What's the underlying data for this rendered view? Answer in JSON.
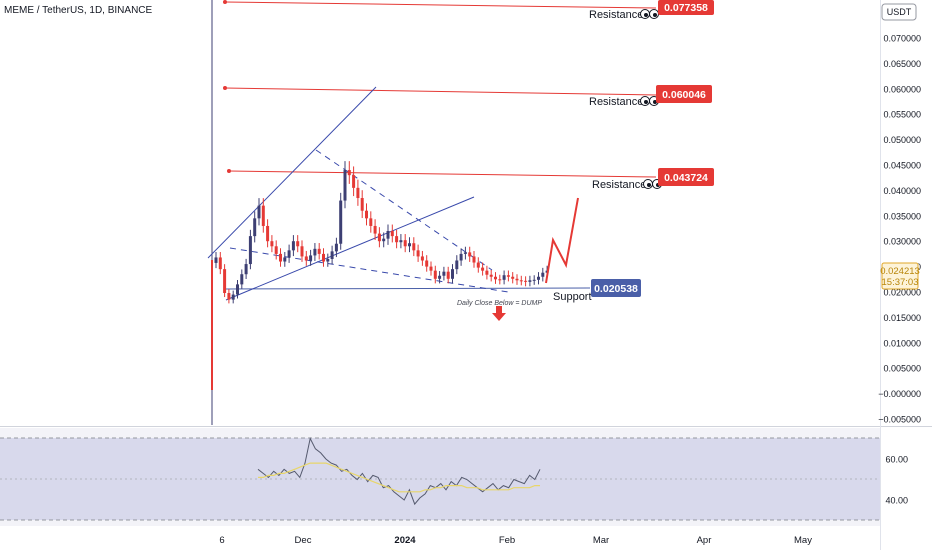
{
  "header": {
    "symbol_title": "MEME / TetherUS, 1D, BINANCE",
    "currency_label": "USDT"
  },
  "annotations": {
    "resistance_label": "Resistance",
    "support_label": "Support",
    "note": "Daily Close Below = DUMP",
    "resistance_levels": [
      "0.077358",
      "0.060046",
      "0.043724"
    ],
    "support_level": "0.020538",
    "current_price": "0.024213",
    "countdown": "15:37:03"
  },
  "colors": {
    "resistance": "#e53935",
    "support": "#4a5fa8",
    "trendline": "#3949ab",
    "candle_up": "#3d3f73",
    "candle_down": "#e53935",
    "projection": "#e53935",
    "rsi_line": "#555a6e",
    "rsi_ma": "#e8d66a",
    "rsi_band": "#d8d9ec"
  },
  "chart_data": [
    {
      "type": "candlestick",
      "yaxis_ticks": [
        "0.070000",
        "0.065000",
        "0.060000",
        "0.055000",
        "0.050000",
        "0.045000",
        "0.040000",
        "0.035000",
        "0.030000",
        "0.025000",
        "0.020000",
        "0.015000",
        "0.010000",
        "0.005000",
        "−0.000000",
        "−0.005000"
      ],
      "xaxis_ticks": [
        "6",
        "Dec",
        "2024",
        "Feb",
        "Mar",
        "Apr",
        "May"
      ],
      "ylim": [
        -0.0055,
        0.0785
      ],
      "close_series": [
        0.0268,
        0.0245,
        0.0198,
        0.0185,
        0.0195,
        0.0215,
        0.0235,
        0.0255,
        0.031,
        0.0345,
        0.037,
        0.033,
        0.03,
        0.029,
        0.0275,
        0.026,
        0.0268,
        0.0282,
        0.03,
        0.029,
        0.027,
        0.0262,
        0.0272,
        0.0285,
        0.0275,
        0.026,
        0.0265,
        0.028,
        0.0295,
        0.038,
        0.044,
        0.043,
        0.0405,
        0.0385,
        0.036,
        0.0345,
        0.033,
        0.0315,
        0.03,
        0.0305,
        0.032,
        0.031,
        0.0298,
        0.0302,
        0.029,
        0.0296,
        0.0282,
        0.027,
        0.0262,
        0.025,
        0.0242,
        0.0226,
        0.0232,
        0.024,
        0.0226,
        0.0245,
        0.0262,
        0.0275,
        0.0278,
        0.027,
        0.0258,
        0.0248,
        0.0242,
        0.0234,
        0.023,
        0.0225,
        0.0224,
        0.0233,
        0.023,
        0.0226,
        0.0223,
        0.0222,
        0.022,
        0.0223,
        0.0224,
        0.023,
        0.0238,
        0.0242
      ]
    },
    {
      "type": "line",
      "series": [
        {
          "values": [
            55,
            53,
            51,
            54,
            52,
            55,
            53,
            54,
            51,
            58,
            70,
            65,
            63,
            60,
            58,
            57,
            54,
            55,
            52,
            50,
            53,
            49,
            52,
            51,
            46,
            47,
            44,
            42,
            40,
            45,
            38,
            41,
            43,
            47,
            46,
            48,
            45,
            49,
            47,
            51,
            50,
            48,
            46,
            44,
            46,
            48,
            45,
            47,
            46,
            50,
            49,
            48,
            52,
            50,
            55
          ]
        },
        {
          "values": [
            51,
            51,
            52,
            52,
            53,
            53,
            54,
            55,
            56,
            57,
            58,
            58,
            58,
            58,
            57,
            56,
            55,
            54,
            53,
            52,
            51,
            50,
            49,
            48,
            47,
            46,
            45,
            44,
            44,
            44,
            44,
            44,
            45,
            45,
            46,
            46,
            47,
            47,
            47,
            47,
            46,
            46,
            46,
            45,
            45,
            45,
            45,
            45,
            45,
            46,
            46,
            46,
            46,
            47,
            47
          ]
        }
      ],
      "yaxis_ticks": [
        "60.00",
        "40.00"
      ]
    }
  ]
}
